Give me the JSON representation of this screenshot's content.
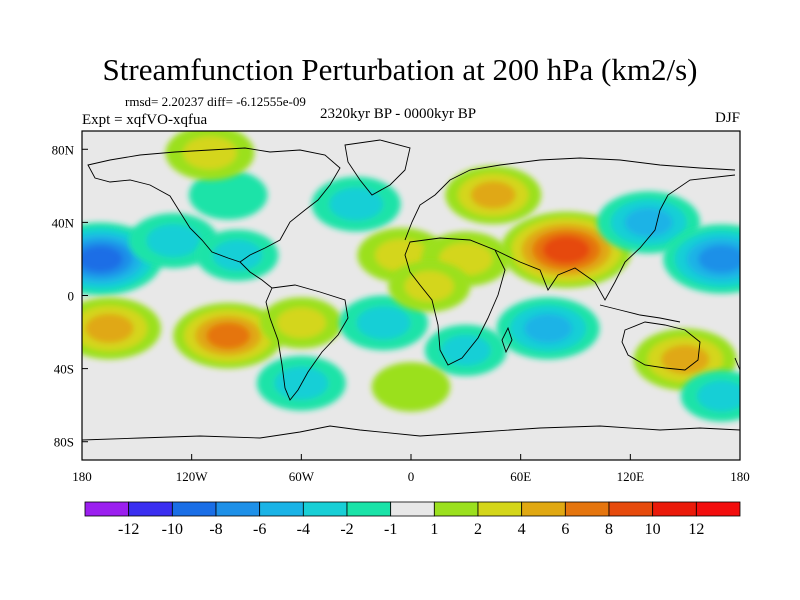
{
  "title": "Streamfunction Perturbation at 200 hPa (km2/s)",
  "stats": "rmsd= 2.20237 diff= -6.12555e-09",
  "experiment": "Expt = xqfVO-xqfua",
  "period": "2320kyr BP - 0000kyr BP",
  "season": "DJF",
  "chart_data": {
    "type": "heatmap",
    "projection": "cylindrical equidistant",
    "xlim": [
      -180,
      180
    ],
    "ylim": [
      -90,
      90
    ],
    "x_ticks": [
      {
        "value": -180,
        "label": "180"
      },
      {
        "value": -120,
        "label": "120W"
      },
      {
        "value": -60,
        "label": "60W"
      },
      {
        "value": 0,
        "label": "0"
      },
      {
        "value": 60,
        "label": "60E"
      },
      {
        "value": 120,
        "label": "120E"
      },
      {
        "value": 180,
        "label": "180"
      }
    ],
    "y_ticks": [
      {
        "value": 80,
        "label": "80N"
      },
      {
        "value": 40,
        "label": "40N"
      },
      {
        "value": 0,
        "label": "0"
      },
      {
        "value": -40,
        "label": "40S"
      },
      {
        "value": -80,
        "label": "80S"
      }
    ],
    "colorbar": {
      "labels": [
        "-12",
        "-10",
        "-8",
        "-6",
        "-4",
        "-2",
        "-1",
        "1",
        "2",
        "4",
        "6",
        "8",
        "10",
        "12"
      ],
      "colors": [
        "#9b1fef",
        "#3a2ef0",
        "#1a6ee6",
        "#1e90e8",
        "#1ab3e6",
        "#18cfd6",
        "#1ae3a8",
        "#e8e8e8",
        "#9be01e",
        "#d4d61a",
        "#e0a812",
        "#e5750e",
        "#e64a0c",
        "#ea1a0a",
        "#f20d0d"
      ]
    },
    "anomalies": [
      {
        "lon": -170,
        "lat": 20,
        "value": -8
      },
      {
        "lon": -130,
        "lat": 30,
        "value": -3
      },
      {
        "lon": -95,
        "lat": 22,
        "value": -2
      },
      {
        "lon": -165,
        "lat": -18,
        "value": 5
      },
      {
        "lon": -100,
        "lat": -22,
        "value": 6
      },
      {
        "lon": -60,
        "lat": -15,
        "value": 2
      },
      {
        "lon": -100,
        "lat": 55,
        "value": -1.5
      },
      {
        "lon": -110,
        "lat": 78,
        "value": 3
      },
      {
        "lon": -30,
        "lat": 50,
        "value": -3
      },
      {
        "lon": -5,
        "lat": 22,
        "value": 3
      },
      {
        "lon": 45,
        "lat": 55,
        "value": 4
      },
      {
        "lon": 85,
        "lat": 25,
        "value": 9
      },
      {
        "lon": 30,
        "lat": 20,
        "value": 3
      },
      {
        "lon": 130,
        "lat": 40,
        "value": -5
      },
      {
        "lon": 170,
        "lat": 20,
        "value": -7
      },
      {
        "lon": 75,
        "lat": -18,
        "value": -5
      },
      {
        "lon": -15,
        "lat": -15,
        "value": -3
      },
      {
        "lon": 30,
        "lat": -30,
        "value": -2
      },
      {
        "lon": 0,
        "lat": -50,
        "value": 1.5
      },
      {
        "lon": 150,
        "lat": -35,
        "value": 5
      },
      {
        "lon": 170,
        "lat": -55,
        "value": -2
      },
      {
        "lon": -60,
        "lat": -48,
        "value": -3
      },
      {
        "lon": 10,
        "lat": 5,
        "value": 2
      }
    ]
  }
}
